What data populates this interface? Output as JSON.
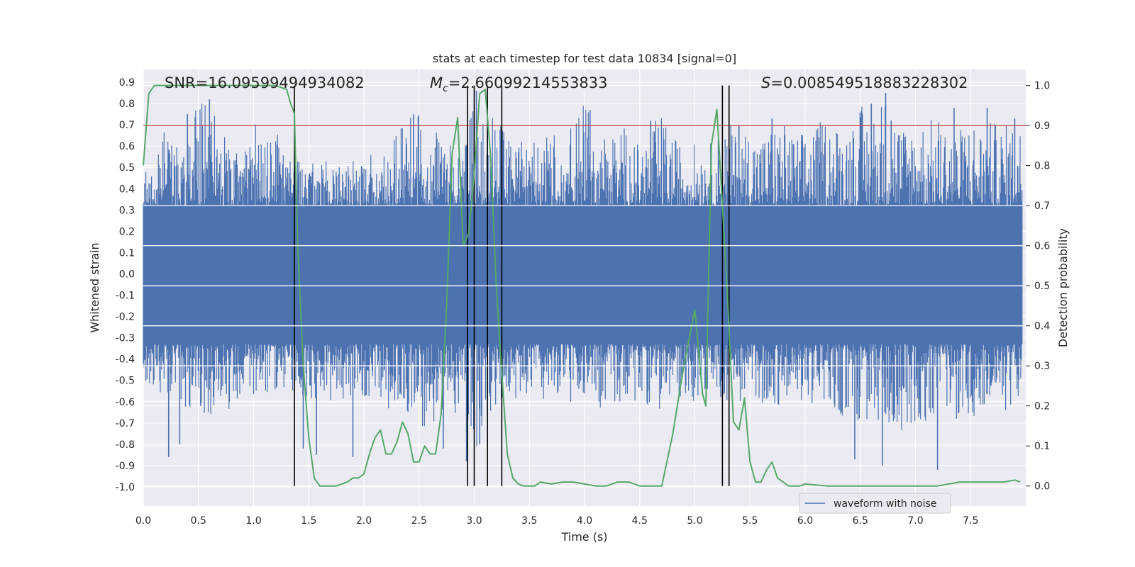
{
  "chart_data": {
    "type": "line",
    "title": "stats at each timestep for test data 10834 [signal=0]",
    "xlabel": "Time (s)",
    "ylabel_left": "Whitened strain",
    "ylabel_right": "Detection probability",
    "xlim": [
      0.0,
      8.0
    ],
    "ylim_left": [
      -1.09,
      0.96
    ],
    "ylim_right": [
      -0.05,
      1.04
    ],
    "x_ticks": [
      "0.0",
      "0.5",
      "1.0",
      "1.5",
      "2.0",
      "2.5",
      "3.0",
      "3.5",
      "4.0",
      "4.5",
      "5.0",
      "5.5",
      "6.0",
      "6.5",
      "7.0",
      "7.5"
    ],
    "y_left_ticks": [
      "0.9",
      "0.8",
      "0.7",
      "0.6",
      "0.5",
      "0.4",
      "0.3",
      "0.2",
      "0.1",
      "0.0",
      "-0.1",
      "-0.2",
      "-0.3",
      "-0.4",
      "-0.5",
      "-0.6",
      "-0.7",
      "-0.8",
      "-0.9",
      "-1.0"
    ],
    "y_right_ticks": [
      "0.0",
      "0.1",
      "0.2",
      "0.3",
      "0.4",
      "0.5",
      "0.6",
      "0.7",
      "0.8",
      "0.9",
      "1.0"
    ],
    "grid": true,
    "threshold": 0.9,
    "vertical_lines": [
      1.37,
      2.94,
      3.0,
      3.12,
      3.25,
      5.25,
      5.31
    ],
    "annotations": {
      "snr": "SNR=16.09599494934082",
      "mc_symbol": "M",
      "mc_sub": "c",
      "mc_value": "=2.66099214553833",
      "s_symbol": "S",
      "s_value": "=0.008549518883228302"
    },
    "series": [
      {
        "name": "waveform with noise",
        "axis": "left",
        "color": "#4c72b0",
        "band_low": -0.33,
        "band_high": 0.32,
        "envelope": [
          [
            0.0,
            0.45,
            -0.5
          ],
          [
            0.1,
            0.62,
            -0.55
          ],
          [
            0.2,
            0.7,
            -0.6
          ],
          [
            0.3,
            0.6,
            -0.55
          ],
          [
            0.4,
            0.75,
            -0.65
          ],
          [
            0.5,
            0.8,
            -0.6
          ],
          [
            0.6,
            0.82,
            -0.7
          ],
          [
            0.7,
            0.65,
            -0.6
          ],
          [
            0.8,
            0.7,
            -0.65
          ],
          [
            0.9,
            0.6,
            -0.55
          ],
          [
            1.0,
            0.75,
            -0.62
          ],
          [
            1.1,
            0.6,
            -0.6
          ],
          [
            1.2,
            0.7,
            -0.55
          ],
          [
            1.3,
            0.6,
            -0.6
          ],
          [
            1.4,
            0.55,
            -0.55
          ],
          [
            1.5,
            0.5,
            -0.6
          ],
          [
            1.6,
            0.55,
            -0.62
          ],
          [
            1.7,
            0.52,
            -0.6
          ],
          [
            1.8,
            0.5,
            -0.6
          ],
          [
            1.9,
            0.55,
            -0.6
          ],
          [
            2.0,
            0.5,
            -0.58
          ],
          [
            2.1,
            0.6,
            -0.6
          ],
          [
            2.2,
            0.62,
            -0.65
          ],
          [
            2.3,
            0.65,
            -0.6
          ],
          [
            2.4,
            0.8,
            -0.65
          ],
          [
            2.5,
            0.75,
            -0.7
          ],
          [
            2.6,
            0.7,
            -0.75
          ],
          [
            2.7,
            0.65,
            -0.65
          ],
          [
            2.8,
            0.62,
            -0.7
          ],
          [
            2.9,
            0.65,
            -0.6
          ],
          [
            3.0,
            0.86,
            -0.85
          ],
          [
            3.1,
            0.7,
            -0.7
          ],
          [
            3.2,
            0.75,
            -0.65
          ],
          [
            3.3,
            0.7,
            -0.6
          ],
          [
            3.4,
            0.65,
            -0.6
          ],
          [
            3.5,
            0.6,
            -0.6
          ],
          [
            3.6,
            0.65,
            -0.6
          ],
          [
            3.7,
            0.7,
            -0.62
          ],
          [
            3.8,
            0.68,
            -0.6
          ],
          [
            3.9,
            0.72,
            -0.62
          ],
          [
            4.0,
            0.8,
            -0.6
          ],
          [
            4.1,
            0.7,
            -0.65
          ],
          [
            4.2,
            0.65,
            -0.6
          ],
          [
            4.3,
            0.72,
            -0.62
          ],
          [
            4.4,
            0.68,
            -0.6
          ],
          [
            4.5,
            0.6,
            -0.6
          ],
          [
            4.6,
            0.7,
            -0.62
          ],
          [
            4.7,
            0.75,
            -0.65
          ],
          [
            4.8,
            0.65,
            -0.6
          ],
          [
            4.9,
            0.6,
            -0.58
          ],
          [
            5.0,
            0.62,
            -0.6
          ],
          [
            5.1,
            0.6,
            -0.55
          ],
          [
            5.2,
            0.65,
            -0.6
          ],
          [
            5.3,
            0.72,
            -0.6
          ],
          [
            5.4,
            0.65,
            -0.6
          ],
          [
            5.5,
            0.7,
            -0.6
          ],
          [
            5.6,
            0.65,
            -0.62
          ],
          [
            5.7,
            0.7,
            -0.6
          ],
          [
            5.8,
            0.72,
            -0.65
          ],
          [
            5.9,
            0.65,
            -0.6
          ],
          [
            6.0,
            0.68,
            -0.6
          ],
          [
            6.1,
            0.7,
            -0.62
          ],
          [
            6.2,
            0.75,
            -0.65
          ],
          [
            6.3,
            0.7,
            -0.7
          ],
          [
            6.4,
            0.72,
            -0.65
          ],
          [
            6.5,
            0.8,
            -0.72
          ],
          [
            6.6,
            0.75,
            -0.7
          ],
          [
            6.7,
            0.85,
            -0.75
          ],
          [
            6.8,
            0.8,
            -0.7
          ],
          [
            6.9,
            0.7,
            -0.75
          ],
          [
            7.0,
            0.75,
            -0.7
          ],
          [
            7.1,
            0.72,
            -0.7
          ],
          [
            7.2,
            0.75,
            -0.65
          ],
          [
            7.3,
            0.7,
            -0.65
          ],
          [
            7.4,
            0.68,
            -0.7
          ],
          [
            7.5,
            0.75,
            -0.68
          ],
          [
            7.6,
            0.7,
            -0.7
          ],
          [
            7.7,
            0.72,
            -0.65
          ],
          [
            7.8,
            0.7,
            -0.65
          ],
          [
            7.9,
            0.72,
            -0.62
          ],
          [
            8.0,
            0.7,
            -0.6
          ]
        ],
        "spikes": [
          [
            0.23,
            -0.86
          ],
          [
            0.33,
            -0.8
          ],
          [
            0.4,
            0.75
          ],
          [
            0.52,
            -0.62
          ],
          [
            0.6,
            0.82
          ],
          [
            0.78,
            -0.6
          ],
          [
            1.45,
            -0.82
          ],
          [
            1.57,
            -0.85
          ],
          [
            1.9,
            -0.86
          ],
          [
            2.45,
            0.75
          ],
          [
            2.72,
            -0.82
          ],
          [
            2.93,
            -0.88
          ],
          [
            3.02,
            0.86
          ],
          [
            3.05,
            -0.8
          ],
          [
            4.05,
            0.77
          ],
          [
            4.6,
            0.72
          ],
          [
            5.4,
            0.7
          ],
          [
            5.7,
            0.73
          ],
          [
            6.45,
            -0.87
          ],
          [
            6.6,
            0.8
          ],
          [
            6.7,
            -0.9
          ],
          [
            6.73,
            0.85
          ],
          [
            6.78,
            0.72
          ],
          [
            7.2,
            -0.92
          ],
          [
            7.35,
            0.78
          ],
          [
            7.65,
            0.78
          ],
          [
            7.9,
            0.73
          ]
        ]
      },
      {
        "name": "detection probability",
        "axis": "right",
        "color": "#55a868",
        "x": [
          0.0,
          0.05,
          0.1,
          0.15,
          0.25,
          0.5,
          0.75,
          1.0,
          1.1,
          1.2,
          1.25,
          1.3,
          1.33,
          1.37,
          1.4,
          1.45,
          1.5,
          1.55,
          1.6,
          1.65,
          1.75,
          1.85,
          1.9,
          1.95,
          2.0,
          2.05,
          2.1,
          2.15,
          2.2,
          2.25,
          2.3,
          2.35,
          2.4,
          2.45,
          2.5,
          2.55,
          2.6,
          2.65,
          2.7,
          2.75,
          2.8,
          2.85,
          2.9,
          2.95,
          3.0,
          3.05,
          3.1,
          3.15,
          3.2,
          3.25,
          3.3,
          3.35,
          3.4,
          3.45,
          3.5,
          3.55,
          3.6,
          3.7,
          3.8,
          3.9,
          4.0,
          4.1,
          4.2,
          4.3,
          4.4,
          4.5,
          4.6,
          4.7,
          4.8,
          4.9,
          5.0,
          5.03,
          5.07,
          5.1,
          5.15,
          5.2,
          5.25,
          5.3,
          5.35,
          5.4,
          5.45,
          5.5,
          5.55,
          5.6,
          5.65,
          5.7,
          5.75,
          5.8,
          5.85,
          5.9,
          5.95,
          6.0,
          6.2,
          6.4,
          6.6,
          6.8,
          7.0,
          7.2,
          7.4,
          7.5,
          7.6,
          7.8,
          7.9,
          7.95
        ],
        "y": [
          0.8,
          0.98,
          1.0,
          1.0,
          1.0,
          1.0,
          1.0,
          1.0,
          1.0,
          1.0,
          0.995,
          0.99,
          0.96,
          0.93,
          0.6,
          0.3,
          0.12,
          0.02,
          0.0,
          0.0,
          0.0,
          0.01,
          0.02,
          0.02,
          0.03,
          0.08,
          0.12,
          0.14,
          0.08,
          0.08,
          0.11,
          0.16,
          0.13,
          0.06,
          0.06,
          0.1,
          0.08,
          0.08,
          0.18,
          0.45,
          0.83,
          0.92,
          0.6,
          0.63,
          0.78,
          0.98,
          0.99,
          0.82,
          0.5,
          0.28,
          0.08,
          0.02,
          0.005,
          0.0,
          0.0,
          0.0,
          0.01,
          0.005,
          0.01,
          0.01,
          0.005,
          0.0,
          0.0,
          0.01,
          0.01,
          0.0,
          0.0,
          0.0,
          0.13,
          0.3,
          0.44,
          0.35,
          0.23,
          0.2,
          0.85,
          0.94,
          0.7,
          0.45,
          0.16,
          0.14,
          0.22,
          0.06,
          0.01,
          0.01,
          0.04,
          0.06,
          0.02,
          0.01,
          0.0,
          0.0,
          0.0,
          0.005,
          0.0,
          0.0,
          0.0,
          0.0,
          0.0,
          0.0,
          0.01,
          0.01,
          0.01,
          0.01,
          0.015,
          0.01
        ]
      }
    ],
    "legend": [
      "waveform with noise"
    ],
    "legend_position": "bottom-right"
  }
}
